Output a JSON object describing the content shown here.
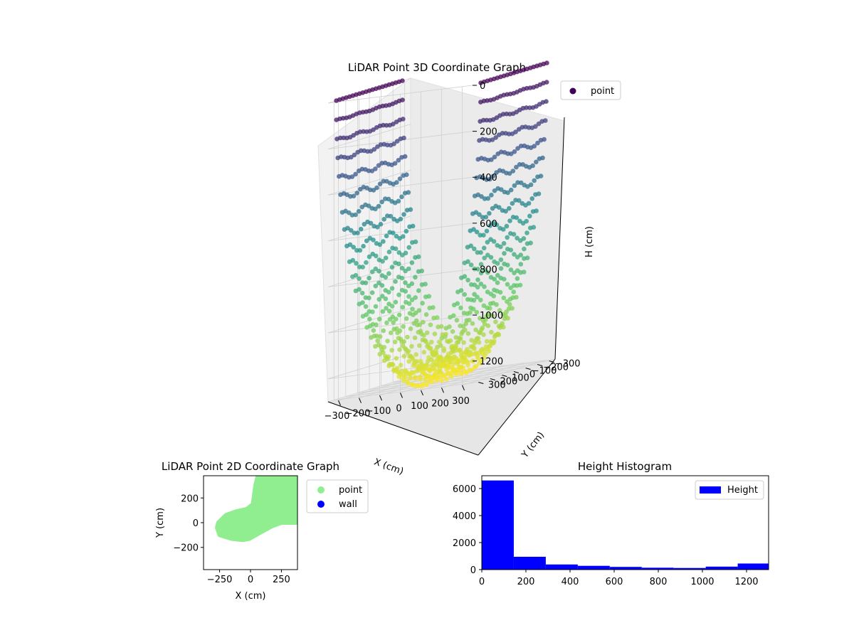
{
  "chart_data": [
    {
      "type": "scatter",
      "title": "LiDAR Point 3D Coordinate Graph",
      "projection": "3d",
      "xlabel": "X (cm)",
      "ylabel": "Y (cm)",
      "zlabel": "H (cm)",
      "x_ticks": [
        -300,
        -200,
        -100,
        0,
        100,
        200,
        300
      ],
      "y_ticks": [
        -300,
        -200,
        -100,
        0,
        100,
        200,
        300
      ],
      "z_ticks": [
        0,
        200,
        400,
        600,
        800,
        1000,
        1200
      ],
      "z_inverted": true,
      "colormap": "viridis",
      "legend": {
        "position": "top-right",
        "entries": [
          {
            "label": "point",
            "color": "#440154"
          }
        ]
      },
      "series": [
        {
          "name": "point",
          "shape": "U-shaped tunnel of scan lines; points colored by height",
          "approx_extent": {
            "x": [
              -350,
              350
            ],
            "y": [
              -300,
              300
            ],
            "h": [
              0,
              1300
            ]
          }
        }
      ]
    },
    {
      "type": "scatter",
      "title": "LiDAR Point 2D Coordinate Graph",
      "xlabel": "X (cm)",
      "ylabel": "Y (cm)",
      "x_ticks": [
        -250,
        0,
        250
      ],
      "y_ticks": [
        -200,
        0,
        200
      ],
      "xlim": [
        -380,
        380
      ],
      "ylim": [
        -380,
        380
      ],
      "legend": {
        "position": "outside-right",
        "entries": [
          {
            "label": "point",
            "color": "#90ee90"
          },
          {
            "label": "wall",
            "color": "#0000ff"
          }
        ]
      },
      "series": [
        {
          "name": "point",
          "color": "#90ee90",
          "outline": [
            [
              -270,
              -40
            ],
            [
              -250,
              -100
            ],
            [
              -150,
              -130
            ],
            [
              -60,
              -140
            ],
            [
              -10,
              -130
            ],
            [
              60,
              -90
            ],
            [
              170,
              -30
            ],
            [
              250,
              0
            ],
            [
              380,
              0
            ],
            [
              380,
              380
            ],
            [
              60,
              380
            ],
            [
              40,
              300
            ],
            [
              20,
              150
            ],
            [
              -30,
              110
            ],
            [
              -120,
              90
            ],
            [
              -200,
              60
            ],
            [
              -260,
              0
            ]
          ]
        },
        {
          "name": "wall",
          "color": "#0000ff",
          "points": []
        }
      ]
    },
    {
      "type": "bar",
      "subtype": "histogram",
      "title": "Height Histogram",
      "xlabel": "",
      "ylabel": "",
      "x_ticks": [
        0,
        200,
        400,
        600,
        800,
        1000,
        1200
      ],
      "y_ticks": [
        0,
        2000,
        4000,
        6000
      ],
      "xlim": [
        0,
        1300
      ],
      "ylim": [
        0,
        6950
      ],
      "color": "#0000ff",
      "legend": {
        "position": "top-right",
        "entries": [
          {
            "label": "Height",
            "color": "#0000ff"
          }
        ]
      },
      "bin_edges": [
        0,
        145,
        290,
        435,
        580,
        725,
        870,
        1015,
        1160,
        1305
      ],
      "values": [
        6600,
        950,
        380,
        280,
        200,
        140,
        120,
        220,
        450
      ]
    }
  ]
}
